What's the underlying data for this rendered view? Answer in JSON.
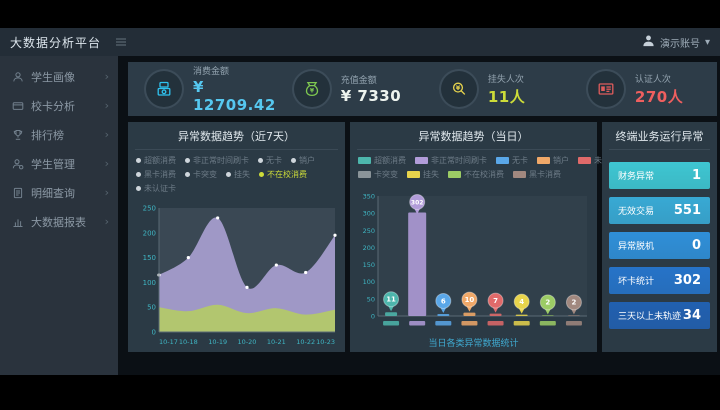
{
  "header": {
    "title": "大数据分析平台",
    "user_label": "演示账号",
    "caret": "▾"
  },
  "sidebar": {
    "items": [
      {
        "label": "学生画像",
        "icon": "student-portrait-icon"
      },
      {
        "label": "校卡分析",
        "icon": "campus-card-icon"
      },
      {
        "label": "排行榜",
        "icon": "ranking-icon"
      },
      {
        "label": "学生管理",
        "icon": "student-manage-icon"
      },
      {
        "label": "明细查询",
        "icon": "detail-query-icon"
      },
      {
        "label": "大数据报表",
        "icon": "report-icon"
      }
    ]
  },
  "kpis": [
    {
      "label": "消费金额",
      "value": "¥ 12709.42",
      "icon": "pos-terminal-icon",
      "accent": "#2fc3f0",
      "value_color": "#56c8f0"
    },
    {
      "label": "充值金额",
      "value": "¥ 7330",
      "icon": "money-bag-icon",
      "accent": "#7ec850",
      "value_color": "#eef4ef"
    },
    {
      "label": "挂失人次",
      "value": "11人",
      "icon": "report-loss-icon",
      "accent": "#e8d44d",
      "value_color": "#cddc39"
    },
    {
      "label": "认证人次",
      "value": "270人",
      "icon": "id-card-icon",
      "accent": "#e05c5c",
      "value_color": "#ef5f5f"
    }
  ],
  "chart_data": [
    {
      "type": "area",
      "title": "异常数据趋势（近7天）",
      "categories": [
        "10-17",
        "10-18",
        "10-19",
        "10-20",
        "10-21",
        "10-22",
        "10-23"
      ],
      "series": [
        {
          "name": "非正常时间刷卡",
          "color": "#a89fd0",
          "values": [
            115,
            150,
            230,
            90,
            135,
            120,
            195
          ]
        },
        {
          "name": "不在校消费",
          "color": "#b3c86a",
          "values": [
            50,
            42,
            55,
            38,
            48,
            35,
            45
          ]
        }
      ],
      "ylim": [
        0,
        250
      ],
      "ytick_step": 50,
      "grid": false,
      "tick_color": "#3fb6c4",
      "legend_rows": [
        [
          "超额消费",
          "非正常时间刷卡",
          "无卡",
          "销户"
        ],
        [
          "黑卡消费",
          "卡突变",
          "挂失",
          "不在校消费"
        ],
        [
          "未认证卡"
        ]
      ],
      "selected_legend": "不在校消费"
    },
    {
      "type": "bar",
      "title": "异常数据趋势（当日）",
      "categories": [
        "超额消费",
        "非正常时间刷卡",
        "无卡",
        "销户",
        "未认证卡",
        "挂失",
        "不在校消费",
        "黑卡消费"
      ],
      "values": [
        11,
        302,
        6,
        10,
        7,
        4,
        2,
        2
      ],
      "colors": [
        "#4db6ac",
        "#b19cd9",
        "#5aa7e8",
        "#f0a868",
        "#e06a6a",
        "#e8d44c",
        "#9ccc65",
        "#a1887f"
      ],
      "ylim": [
        0,
        350
      ],
      "ytick_step": 50,
      "tick_color": "#3fb6c4",
      "legend_rows": [
        [
          {
            "label": "超额消费",
            "color": "#4db6ac"
          },
          {
            "label": "非正常时间刷卡",
            "color": "#b19cd9"
          },
          {
            "label": "无卡",
            "color": "#5aa7e8"
          },
          {
            "label": "销户",
            "color": "#f0a868"
          },
          {
            "label": "未认证卡",
            "color": "#e06a6a"
          }
        ],
        [
          {
            "label": "卡突变",
            "color": "#8a9499"
          },
          {
            "label": "挂失",
            "color": "#e8d44c"
          },
          {
            "label": "不在校消费",
            "color": "#9ccc65"
          },
          {
            "label": "黑卡消费",
            "color": "#a1887f"
          }
        ]
      ],
      "footer": "当日各类异常数据统计"
    }
  ],
  "right_panel": {
    "title": "终端业务运行异常",
    "rows": [
      {
        "label": "财务异常",
        "value": "1",
        "color": "#3ec6d2"
      },
      {
        "label": "无效交易",
        "value": "551",
        "color": "#38a9d4"
      },
      {
        "label": "异常脱机",
        "value": "0",
        "color": "#2f8fd8"
      },
      {
        "label": "坏卡统计",
        "value": "302",
        "color": "#2673c8"
      },
      {
        "label": "三天以上未轨迹",
        "value": "34",
        "color": "#2160b0"
      }
    ]
  }
}
